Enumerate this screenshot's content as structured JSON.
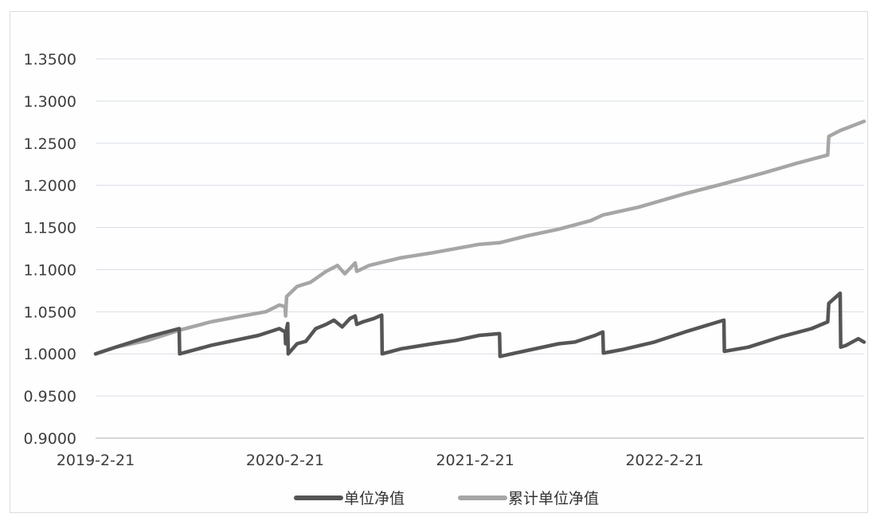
{
  "chart_data": {
    "type": "line",
    "title": "",
    "xlabel": "",
    "ylabel": "",
    "ylim": [
      0.9,
      1.35
    ],
    "y_ticks": [
      "1.3500",
      "1.3000",
      "1.2500",
      "1.2000",
      "1.1500",
      "1.1000",
      "1.0500",
      "1.0000",
      "0.9500",
      "0.9000"
    ],
    "y_tick_values": [
      1.35,
      1.3,
      1.25,
      1.2,
      1.15,
      1.1,
      1.05,
      1.0,
      0.95,
      0.9
    ],
    "x_ticks": [
      "2019-2-21",
      "2020-2-21",
      "2021-2-21",
      "2022-2-21"
    ],
    "xlim": [
      "2019-02-21",
      "2023-03-12"
    ],
    "grid": true,
    "legend_position": "bottom",
    "series": [
      {
        "name": "单位净值",
        "color": "#555555",
        "points": [
          [
            "2019-02-21",
            1.0
          ],
          [
            "2019-04-01",
            1.008
          ],
          [
            "2019-06-01",
            1.02
          ],
          [
            "2019-08-01",
            1.03
          ],
          [
            "2019-08-02",
            1.0
          ],
          [
            "2019-10-01",
            1.01
          ],
          [
            "2019-12-01",
            1.018
          ],
          [
            "2020-01-01",
            1.022
          ],
          [
            "2020-02-10",
            1.03
          ],
          [
            "2020-02-21",
            1.026
          ],
          [
            "2020-02-22",
            1.012
          ],
          [
            "2020-02-24",
            1.03
          ],
          [
            "2020-02-26",
            1.036
          ],
          [
            "2020-02-27",
            1.0
          ],
          [
            "2020-03-15",
            1.012
          ],
          [
            "2020-04-01",
            1.015
          ],
          [
            "2020-04-20",
            1.03
          ],
          [
            "2020-05-10",
            1.035
          ],
          [
            "2020-05-25",
            1.04
          ],
          [
            "2020-06-10",
            1.032
          ],
          [
            "2020-06-25",
            1.042
          ],
          [
            "2020-07-05",
            1.045
          ],
          [
            "2020-07-08",
            1.035
          ],
          [
            "2020-07-20",
            1.038
          ],
          [
            "2020-08-10",
            1.042
          ],
          [
            "2020-08-25",
            1.046
          ],
          [
            "2020-08-26",
            1.0
          ],
          [
            "2020-10-01",
            1.006
          ],
          [
            "2020-12-01",
            1.012
          ],
          [
            "2021-01-15",
            1.016
          ],
          [
            "2021-03-01",
            1.022
          ],
          [
            "2021-04-09",
            1.024
          ],
          [
            "2021-04-10",
            0.997
          ],
          [
            "2021-06-01",
            1.004
          ],
          [
            "2021-08-01",
            1.012
          ],
          [
            "2021-09-01",
            1.014
          ],
          [
            "2021-10-10",
            1.022
          ],
          [
            "2021-10-25",
            1.026
          ],
          [
            "2021-10-26",
            1.001
          ],
          [
            "2021-12-01",
            1.005
          ],
          [
            "2022-02-01",
            1.014
          ],
          [
            "2022-04-01",
            1.026
          ],
          [
            "2022-06-15",
            1.04
          ],
          [
            "2022-06-16",
            1.003
          ],
          [
            "2022-08-01",
            1.008
          ],
          [
            "2022-10-01",
            1.02
          ],
          [
            "2022-12-01",
            1.03
          ],
          [
            "2023-01-01",
            1.038
          ],
          [
            "2023-01-03",
            1.06
          ],
          [
            "2023-01-25",
            1.072
          ],
          [
            "2023-01-26",
            1.008
          ],
          [
            "2023-02-05",
            1.01
          ],
          [
            "2023-03-01",
            1.018
          ],
          [
            "2023-03-12",
            1.014
          ]
        ]
      },
      {
        "name": "累计单位净值",
        "color": "#a6a6a6",
        "points": [
          [
            "2019-02-21",
            1.0
          ],
          [
            "2019-04-01",
            1.008
          ],
          [
            "2019-06-01",
            1.016
          ],
          [
            "2019-08-01",
            1.028
          ],
          [
            "2019-10-01",
            1.038
          ],
          [
            "2019-12-01",
            1.045
          ],
          [
            "2020-01-15",
            1.05
          ],
          [
            "2020-02-10",
            1.058
          ],
          [
            "2020-02-21",
            1.056
          ],
          [
            "2020-02-22",
            1.045
          ],
          [
            "2020-02-24",
            1.068
          ],
          [
            "2020-03-15",
            1.08
          ],
          [
            "2020-04-10",
            1.085
          ],
          [
            "2020-05-10",
            1.098
          ],
          [
            "2020-06-01",
            1.105
          ],
          [
            "2020-06-15",
            1.095
          ],
          [
            "2020-07-05",
            1.108
          ],
          [
            "2020-07-08",
            1.098
          ],
          [
            "2020-08-01",
            1.105
          ],
          [
            "2020-10-01",
            1.114
          ],
          [
            "2020-12-01",
            1.12
          ],
          [
            "2021-03-01",
            1.13
          ],
          [
            "2021-04-10",
            1.132
          ],
          [
            "2021-06-01",
            1.14
          ],
          [
            "2021-08-01",
            1.148
          ],
          [
            "2021-10-01",
            1.158
          ],
          [
            "2021-10-26",
            1.165
          ],
          [
            "2022-01-01",
            1.174
          ],
          [
            "2022-04-01",
            1.19
          ],
          [
            "2022-06-15",
            1.202
          ],
          [
            "2022-09-01",
            1.215
          ],
          [
            "2022-11-01",
            1.226
          ],
          [
            "2023-01-01",
            1.236
          ],
          [
            "2023-01-03",
            1.258
          ],
          [
            "2023-01-25",
            1.265
          ],
          [
            "2023-02-15",
            1.27
          ],
          [
            "2023-03-12",
            1.276
          ]
        ]
      }
    ]
  }
}
